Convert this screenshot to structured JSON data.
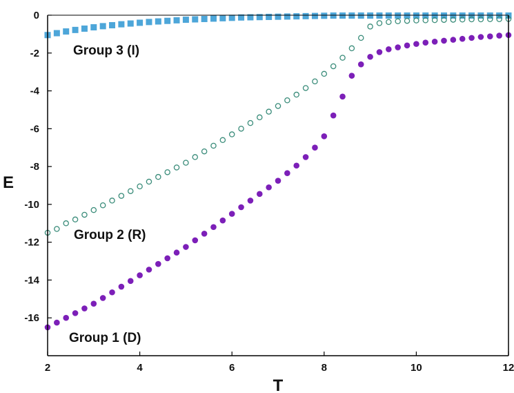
{
  "chart_data": {
    "type": "scatter",
    "xlabel": "T",
    "ylabel": "E",
    "xlim": [
      2,
      12
    ],
    "ylim": [
      -18,
      0
    ],
    "xticks": [
      2,
      4,
      6,
      8,
      10,
      12
    ],
    "yticks": [
      0,
      -2,
      -4,
      -6,
      -8,
      -10,
      -12,
      -14,
      -16
    ],
    "grid": false,
    "series": [
      {
        "name": "Group 3 (I)",
        "marker": "square",
        "filled": true,
        "color": "#4da6d9",
        "x": [
          2.0,
          2.2,
          2.4,
          2.6,
          2.8,
          3.0,
          3.2,
          3.4,
          3.6,
          3.8,
          4.0,
          4.2,
          4.4,
          4.6,
          4.8,
          5.0,
          5.2,
          5.4,
          5.6,
          5.8,
          6.0,
          6.2,
          6.4,
          6.6,
          6.8,
          7.0,
          7.2,
          7.4,
          7.6,
          7.8,
          8.0,
          8.2,
          8.4,
          8.6,
          8.8,
          9.0,
          9.2,
          9.4,
          9.6,
          9.8,
          10.0,
          10.2,
          10.4,
          10.6,
          10.8,
          11.0,
          11.2,
          11.4,
          11.6,
          11.8,
          12.0
        ],
        "y": [
          -1.05,
          -0.95,
          -0.86,
          -0.78,
          -0.71,
          -0.64,
          -0.58,
          -0.53,
          -0.48,
          -0.44,
          -0.4,
          -0.36,
          -0.33,
          -0.3,
          -0.27,
          -0.24,
          -0.22,
          -0.2,
          -0.18,
          -0.16,
          -0.14,
          -0.12,
          -0.11,
          -0.1,
          -0.09,
          -0.08,
          -0.07,
          -0.06,
          -0.05,
          -0.04,
          -0.03,
          -0.02,
          -0.02,
          -0.02,
          -0.02,
          -0.02,
          -0.02,
          -0.02,
          -0.02,
          -0.02,
          -0.02,
          -0.02,
          -0.02,
          -0.02,
          -0.02,
          -0.02,
          -0.02,
          -0.02,
          -0.02,
          -0.02,
          -0.02
        ]
      },
      {
        "name": "Group 2 (R)",
        "marker": "circle",
        "filled": false,
        "color": "#3a8c7a",
        "x": [
          2.0,
          2.2,
          2.4,
          2.6,
          2.8,
          3.0,
          3.2,
          3.4,
          3.6,
          3.8,
          4.0,
          4.2,
          4.4,
          4.6,
          4.8,
          5.0,
          5.2,
          5.4,
          5.6,
          5.8,
          6.0,
          6.2,
          6.4,
          6.6,
          6.8,
          7.0,
          7.2,
          7.4,
          7.6,
          7.8,
          8.0,
          8.2,
          8.4,
          8.6,
          8.8,
          9.0,
          9.2,
          9.4,
          9.6,
          9.8,
          10.0,
          10.2,
          10.4,
          10.6,
          10.8,
          11.0,
          11.2,
          11.4,
          11.6,
          11.8,
          12.0
        ],
        "y": [
          -11.5,
          -11.3,
          -11.0,
          -10.8,
          -10.55,
          -10.3,
          -10.05,
          -9.8,
          -9.55,
          -9.3,
          -9.05,
          -8.8,
          -8.55,
          -8.3,
          -8.05,
          -7.8,
          -7.5,
          -7.2,
          -6.9,
          -6.6,
          -6.3,
          -6.0,
          -5.7,
          -5.4,
          -5.1,
          -4.8,
          -4.5,
          -4.2,
          -3.85,
          -3.5,
          -3.1,
          -2.7,
          -2.25,
          -1.75,
          -1.2,
          -0.6,
          -0.42,
          -0.36,
          -0.32,
          -0.3,
          -0.28,
          -0.27,
          -0.26,
          -0.25,
          -0.24,
          -0.23,
          -0.22,
          -0.22,
          -0.21,
          -0.21,
          -0.2
        ]
      },
      {
        "name": "Group 1 (D)",
        "marker": "circle",
        "filled": true,
        "color": "#7c1fb8",
        "x": [
          2.0,
          2.2,
          2.4,
          2.6,
          2.8,
          3.0,
          3.2,
          3.4,
          3.6,
          3.8,
          4.0,
          4.2,
          4.4,
          4.6,
          4.8,
          5.0,
          5.2,
          5.4,
          5.6,
          5.8,
          6.0,
          6.2,
          6.4,
          6.6,
          6.8,
          7.0,
          7.2,
          7.4,
          7.6,
          7.8,
          8.0,
          8.2,
          8.4,
          8.6,
          8.8,
          9.0,
          9.2,
          9.4,
          9.6,
          9.8,
          10.0,
          10.2,
          10.4,
          10.6,
          10.8,
          11.0,
          11.2,
          11.4,
          11.6,
          11.8,
          12.0
        ],
        "y": [
          -16.5,
          -16.25,
          -16.0,
          -15.75,
          -15.5,
          -15.25,
          -14.95,
          -14.65,
          -14.35,
          -14.05,
          -13.75,
          -13.45,
          -13.15,
          -12.85,
          -12.55,
          -12.25,
          -11.9,
          -11.55,
          -11.2,
          -10.85,
          -10.5,
          -10.15,
          -9.8,
          -9.45,
          -9.1,
          -8.75,
          -8.35,
          -7.95,
          -7.5,
          -7.0,
          -6.4,
          -5.3,
          -4.3,
          -3.2,
          -2.6,
          -2.2,
          -1.95,
          -1.8,
          -1.7,
          -1.6,
          -1.52,
          -1.45,
          -1.4,
          -1.35,
          -1.3,
          -1.25,
          -1.2,
          -1.15,
          -1.12,
          -1.08,
          -1.05
        ]
      }
    ],
    "series_labels": [
      "Group 3 (I)",
      "Group 2 (R)",
      "Group 1 (D)"
    ]
  }
}
